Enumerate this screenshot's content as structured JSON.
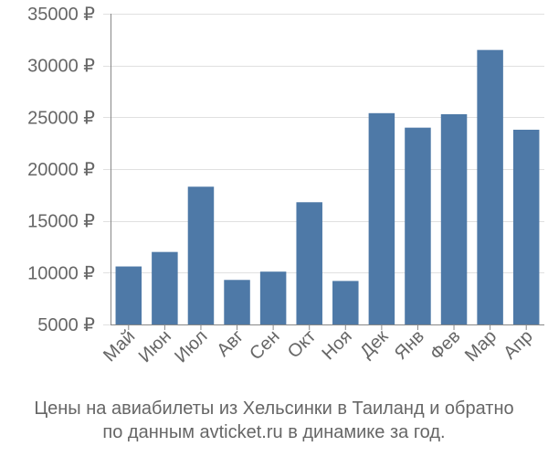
{
  "chart_data": {
    "type": "bar",
    "categories": [
      "Май",
      "Июн",
      "Июл",
      "Авг",
      "Сен",
      "Окт",
      "Ноя",
      "Дек",
      "Янв",
      "Фев",
      "Мар",
      "Апр"
    ],
    "values": [
      10600,
      12000,
      18300,
      9300,
      10100,
      16800,
      9200,
      25400,
      24000,
      25300,
      31500,
      23800
    ],
    "y_ticks": [
      5000,
      10000,
      15000,
      20000,
      25000,
      30000,
      35000
    ],
    "y_tick_labels": [
      "5000 ₽",
      "10000 ₽",
      "15000 ₽",
      "20000 ₽",
      "25000 ₽",
      "30000 ₽",
      "35000 ₽"
    ],
    "ylim": [
      5000,
      35000
    ],
    "grid": true,
    "bar_color": "#4e79a7",
    "grid_color": "#e0e0e0",
    "axis_color": "#888888"
  },
  "caption": {
    "line1": "Цены на авиабилеты из Хельсинки в Таиланд и обратно",
    "line2": "по данным avticket.ru в динамике за год."
  }
}
